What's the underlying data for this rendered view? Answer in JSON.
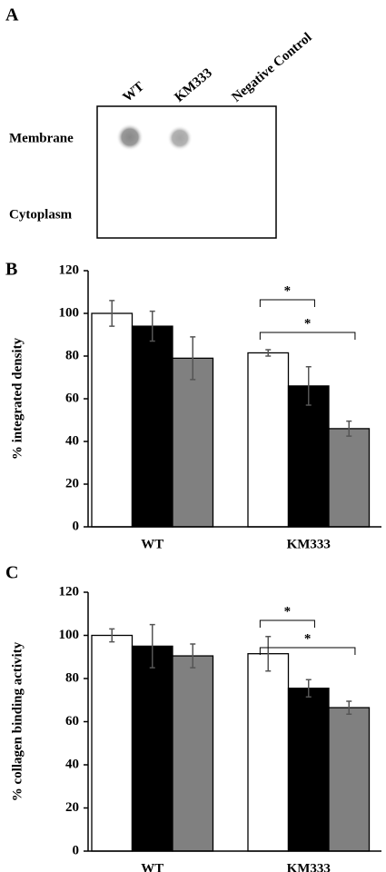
{
  "blot": {
    "panel_label": "A",
    "columns": [
      "WT",
      "KM333",
      "Negative Control"
    ],
    "rows": [
      "Membrane",
      "Cytoplasm"
    ]
  },
  "chart_data": [
    {
      "type": "bar",
      "panel_label": "B",
      "ylabel": "% integrated density",
      "categories": [
        "WT",
        "KM333"
      ],
      "series": [
        {
          "color": "#ffffff",
          "values": [
            100,
            81.5
          ],
          "errors": [
            6,
            1.5
          ]
        },
        {
          "color": "#000000",
          "values": [
            94,
            66
          ],
          "errors": [
            7,
            9
          ]
        },
        {
          "color": "#808080",
          "values": [
            79,
            46
          ],
          "errors": [
            10,
            3.5
          ]
        }
      ],
      "ylim": [
        0,
        120
      ],
      "yticks": [
        0,
        20,
        40,
        60,
        80,
        100,
        120
      ],
      "annotations": [
        {
          "text": "*"
        },
        {
          "text": "*"
        }
      ]
    },
    {
      "type": "bar",
      "panel_label": "C",
      "ylabel": "% collagen binding activity",
      "categories": [
        "WT",
        "KM333"
      ],
      "series": [
        {
          "color": "#ffffff",
          "values": [
            100,
            91.5
          ],
          "errors": [
            3,
            8
          ]
        },
        {
          "color": "#000000",
          "values": [
            95,
            75.5
          ],
          "errors": [
            10,
            4
          ]
        },
        {
          "color": "#808080",
          "values": [
            90.5,
            66.5
          ],
          "errors": [
            5.5,
            3
          ]
        }
      ],
      "ylim": [
        0,
        120
      ],
      "yticks": [
        0,
        20,
        40,
        60,
        80,
        100,
        120
      ],
      "annotations": [
        {
          "text": "*"
        },
        {
          "text": "*"
        }
      ]
    }
  ]
}
